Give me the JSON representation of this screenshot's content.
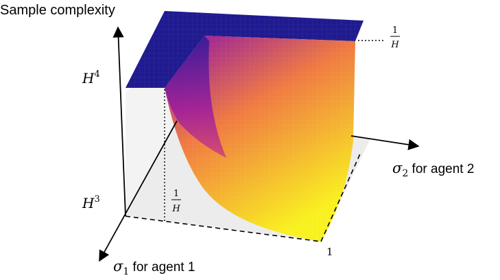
{
  "axes": {
    "vertical_label": "Sample complexity",
    "axis1": {
      "symbol": "σ",
      "subscript": "1",
      "suffix": " for agent 1"
    },
    "axis2": {
      "symbol": "σ",
      "subscript": "2",
      "suffix": " for agent 2"
    }
  },
  "ticks": {
    "h4": {
      "base": "H",
      "exp": "4"
    },
    "h3": {
      "base": "H",
      "exp": "3"
    },
    "frac_numerator": "1",
    "frac_denominator": "H",
    "corner_one": "1"
  },
  "colors": {
    "plateau": "#1f1a8f",
    "surface_low": "#f9f11f",
    "surface_mid": "#f07a42",
    "surface_high": "#8a10a8",
    "floor": "#ececec"
  }
}
